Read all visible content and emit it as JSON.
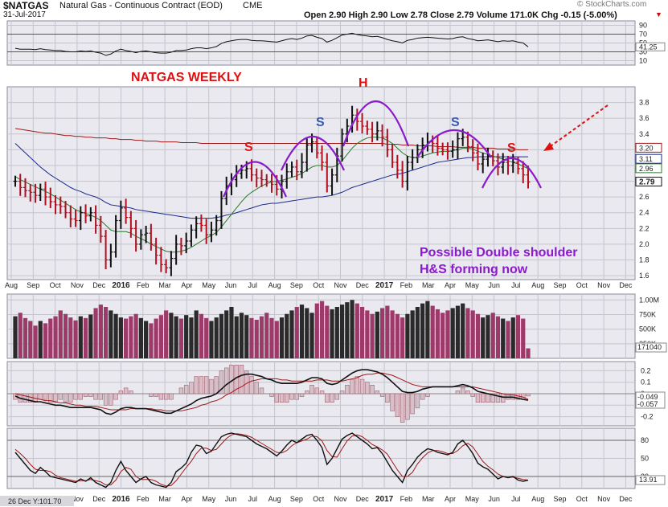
{
  "header": {
    "symbol": "$NATGAS",
    "name": "Natural Gas - Continuous Contract (EOD)",
    "exchange": "CME",
    "date": "31-Jul-2017",
    "quote": "Open 2.90  High 2.90  Low 2.78  Close 2.79  Volume 171.0K  Chg -0.15 (-5.00%)",
    "watermark": "© StockCharts.com"
  },
  "annotations": {
    "title": "NATGAS WEEKLY",
    "note_line1": "Possible Double shoulder",
    "note_line2": "H&S forming now",
    "s_left": "S",
    "s_left2": "S",
    "h": "H",
    "s_right": "S",
    "s_right2": "S"
  },
  "colors": {
    "panel_bg": "#e9e9ef",
    "price_red": "#b01020",
    "price_black": "#111111",
    "ma_red": "#a01818",
    "ma_navy": "#1a2a8c",
    "ma_green": "#2a7a2a",
    "hs_purple": "#8a1acb",
    "volume_bar": "#9e3a6a",
    "volume_dark": "#2a2a2a",
    "annotation_red": "#e01010",
    "annotation_blue": "#3a5ab0",
    "label_box_bg": "#ffffff"
  },
  "chart_data": [
    {
      "type": "ohlc",
      "name": "price",
      "x_labels": [
        "Aug",
        "Sep",
        "Oct",
        "Nov",
        "Dec",
        "2016",
        "Feb",
        "Mar",
        "Apr",
        "May",
        "Jun",
        "Jul",
        "Aug",
        "Sep",
        "Oct",
        "Nov",
        "Dec",
        "2017",
        "Feb",
        "Mar",
        "Apr",
        "May",
        "Jun",
        "Jul",
        "Aug",
        "Sep",
        "Oct",
        "Nov",
        "Dec"
      ],
      "y_ticks": [
        1.6,
        1.8,
        2.0,
        2.2,
        2.4,
        2.6,
        2.8,
        3.0,
        3.2,
        3.4,
        3.6,
        3.8
      ],
      "ylim": [
        1.55,
        4.0
      ],
      "closes": [
        2.8,
        2.72,
        2.68,
        2.66,
        2.62,
        2.7,
        2.6,
        2.54,
        2.5,
        2.48,
        2.4,
        2.32,
        2.3,
        2.4,
        2.36,
        2.4,
        2.24,
        2.1,
        1.8,
        1.9,
        2.3,
        2.46,
        2.34,
        2.2,
        2.0,
        2.12,
        2.14,
        2.0,
        1.86,
        1.74,
        1.7,
        1.82,
        2.0,
        1.98,
        2.04,
        2.18,
        2.26,
        2.24,
        2.12,
        2.18,
        2.3,
        2.58,
        2.74,
        2.82,
        2.9,
        2.94,
        2.96,
        2.88,
        2.84,
        2.82,
        2.8,
        2.76,
        2.7,
        2.8,
        2.92,
        2.98,
        2.92,
        3.04,
        3.26,
        3.3,
        3.16,
        3.04,
        2.74,
        2.88,
        3.12,
        3.4,
        3.5,
        3.64,
        3.56,
        3.5,
        3.46,
        3.4,
        3.44,
        3.36,
        3.2,
        3.04,
        2.94,
        2.8,
        3.04,
        3.1,
        3.2,
        3.26,
        3.3,
        3.28,
        3.22,
        3.2,
        3.18,
        3.2,
        3.34,
        3.36,
        3.24,
        3.16,
        3.02,
        3.08,
        3.12,
        3.06,
        2.98,
        3.04,
        3.0,
        3.04,
        2.96,
        2.88,
        2.79
      ],
      "last_close": "2.79",
      "right_labels": [
        "3.20",
        "3.11",
        "2.96",
        "2.79"
      ],
      "moving_averages": [
        {
          "name": "MA red",
          "values": [
            3.47,
            3.46,
            3.45,
            3.44,
            3.43,
            3.42,
            3.41,
            3.41,
            3.4,
            3.39,
            3.38,
            3.38,
            3.37,
            3.37,
            3.36,
            3.36,
            3.35,
            3.35,
            3.35,
            3.34,
            3.34,
            3.33,
            3.33,
            3.33,
            3.32,
            3.32,
            3.31,
            3.31,
            3.31,
            3.3,
            3.3,
            3.3,
            3.3,
            3.29,
            3.29,
            3.29,
            3.29,
            3.28,
            3.28,
            3.28,
            3.28,
            3.28,
            3.28,
            3.28,
            3.28,
            3.28,
            3.28,
            3.28,
            3.28,
            3.28,
            3.28,
            3.28,
            3.28,
            3.28,
            3.28,
            3.28,
            3.28,
            3.28,
            3.28,
            3.28,
            3.28,
            3.28,
            3.28,
            3.28,
            3.28,
            3.28,
            3.28,
            3.28,
            3.28,
            3.28,
            3.28,
            3.28,
            3.28,
            3.28,
            3.27,
            3.27,
            3.27,
            3.26,
            3.26,
            3.26,
            3.25,
            3.25,
            3.25,
            3.25,
            3.24,
            3.24,
            3.24,
            3.24,
            3.23,
            3.23,
            3.23,
            3.23,
            3.22,
            3.22,
            3.22,
            3.22,
            3.21,
            3.21,
            3.21,
            3.21,
            3.2,
            3.2,
            3.2
          ]
        },
        {
          "name": "MA navy",
          "values": [
            3.28,
            3.22,
            3.16,
            3.1,
            3.04,
            2.98,
            2.93,
            2.88,
            2.84,
            2.8,
            2.76,
            2.72,
            2.69,
            2.67,
            2.64,
            2.62,
            2.6,
            2.57,
            2.53,
            2.5,
            2.49,
            2.48,
            2.47,
            2.46,
            2.44,
            2.43,
            2.42,
            2.41,
            2.4,
            2.39,
            2.38,
            2.37,
            2.36,
            2.35,
            2.34,
            2.33,
            2.33,
            2.33,
            2.33,
            2.33,
            2.34,
            2.35,
            2.37,
            2.38,
            2.4,
            2.42,
            2.44,
            2.46,
            2.48,
            2.5,
            2.51,
            2.52,
            2.52,
            2.53,
            2.54,
            2.55,
            2.56,
            2.57,
            2.58,
            2.59,
            2.6,
            2.6,
            2.61,
            2.62,
            2.64,
            2.66,
            2.69,
            2.72,
            2.74,
            2.76,
            2.78,
            2.8,
            2.82,
            2.84,
            2.86,
            2.88,
            2.89,
            2.9,
            2.92,
            2.94,
            2.96,
            2.98,
            3.0,
            3.02,
            3.04,
            3.05,
            3.06,
            3.07,
            3.08,
            3.09,
            3.1,
            3.1,
            3.11,
            3.11,
            3.11,
            3.11,
            3.11,
            3.11,
            3.11,
            3.11,
            3.11,
            3.11,
            3.11
          ]
        },
        {
          "name": "MA green",
          "values": [
            2.86,
            2.82,
            2.79,
            2.76,
            2.73,
            2.7,
            2.67,
            2.64,
            2.6,
            2.56,
            2.52,
            2.48,
            2.44,
            2.41,
            2.39,
            2.37,
            2.34,
            2.3,
            2.24,
            2.18,
            2.16,
            2.16,
            2.16,
            2.14,
            2.1,
            2.07,
            2.04,
            2.0,
            1.97,
            1.94,
            1.91,
            1.9,
            1.9,
            1.91,
            1.93,
            1.96,
            2.0,
            2.04,
            2.08,
            2.11,
            2.15,
            2.22,
            2.3,
            2.38,
            2.46,
            2.54,
            2.61,
            2.66,
            2.7,
            2.74,
            2.77,
            2.79,
            2.8,
            2.81,
            2.83,
            2.85,
            2.87,
            2.9,
            2.94,
            2.98,
            3.0,
            3.0,
            2.98,
            2.98,
            3.0,
            3.06,
            3.14,
            3.22,
            3.28,
            3.32,
            3.35,
            3.36,
            3.36,
            3.35,
            3.32,
            3.28,
            3.22,
            3.16,
            3.12,
            3.1,
            3.1,
            3.12,
            3.14,
            3.16,
            3.17,
            3.18,
            3.18,
            3.19,
            3.2,
            3.22,
            3.22,
            3.21,
            3.18,
            3.16,
            3.14,
            3.12,
            3.1,
            3.08,
            3.06,
            3.04,
            3.02,
            2.99,
            2.96
          ]
        }
      ]
    },
    {
      "type": "line",
      "name": "RSI",
      "y_ticks": [
        10,
        30,
        50,
        70,
        90
      ],
      "ylim": [
        0,
        100
      ],
      "values": [
        38,
        36,
        36,
        36,
        35,
        37,
        35,
        34,
        33,
        33,
        31,
        30,
        30,
        32,
        31,
        32,
        29,
        27,
        22,
        25,
        32,
        36,
        33,
        31,
        28,
        31,
        32,
        30,
        28,
        27,
        27,
        29,
        33,
        33,
        34,
        37,
        39,
        39,
        37,
        39,
        42,
        49,
        53,
        55,
        57,
        58,
        58,
        56,
        55,
        55,
        54,
        53,
        52,
        55,
        58,
        60,
        58,
        61,
        66,
        67,
        63,
        60,
        52,
        56,
        62,
        68,
        70,
        72,
        69,
        67,
        66,
        64,
        65,
        62,
        58,
        55,
        53,
        50,
        56,
        58,
        61,
        62,
        63,
        62,
        61,
        60,
        59,
        60,
        63,
        64,
        60,
        58,
        55,
        56,
        57,
        55,
        53,
        55,
        54,
        55,
        52,
        50,
        41.25
      ],
      "last": "41.25"
    },
    {
      "type": "bar",
      "name": "volume",
      "y_ticks": [
        "1.00M",
        "750K",
        "500K",
        "250K"
      ],
      "ylim": [
        0,
        1100
      ],
      "values": [
        720,
        780,
        690,
        640,
        560,
        640,
        600,
        680,
        720,
        820,
        760,
        700,
        650,
        720,
        690,
        750,
        860,
        920,
        880,
        820,
        760,
        700,
        680,
        720,
        760,
        690,
        640,
        600,
        680,
        740,
        820,
        780,
        720,
        680,
        740,
        700,
        820,
        760,
        690,
        640,
        700,
        760,
        820,
        880,
        720,
        780,
        740,
        690,
        660,
        720,
        780,
        690,
        640,
        700,
        760,
        820,
        880,
        920,
        860,
        780,
        940,
        980,
        900,
        840,
        880,
        920,
        960,
        1000,
        940,
        880,
        820,
        760,
        800,
        860,
        900,
        820,
        760,
        700,
        760,
        820,
        880,
        940,
        980,
        900,
        840,
        780,
        820,
        860,
        900,
        940,
        860,
        820,
        760,
        700,
        740,
        780,
        720,
        680,
        640,
        700,
        740,
        680,
        171
      ],
      "last": "171040"
    },
    {
      "type": "line",
      "name": "MACD",
      "y_ticks": [
        0.2,
        0.1,
        0.0,
        -0.1,
        -0.2
      ],
      "ylim": [
        -0.28,
        0.28
      ],
      "macd": [
        -0.02,
        -0.04,
        -0.05,
        -0.06,
        -0.07,
        -0.07,
        -0.08,
        -0.09,
        -0.1,
        -0.1,
        -0.11,
        -0.12,
        -0.12,
        -0.12,
        -0.12,
        -0.12,
        -0.13,
        -0.14,
        -0.17,
        -0.18,
        -0.16,
        -0.13,
        -0.12,
        -0.12,
        -0.13,
        -0.13,
        -0.13,
        -0.14,
        -0.15,
        -0.16,
        -0.17,
        -0.17,
        -0.15,
        -0.13,
        -0.11,
        -0.09,
        -0.06,
        -0.04,
        -0.03,
        -0.02,
        0.0,
        0.04,
        0.08,
        0.11,
        0.14,
        0.16,
        0.17,
        0.17,
        0.16,
        0.15,
        0.13,
        0.12,
        0.1,
        0.09,
        0.09,
        0.09,
        0.09,
        0.1,
        0.12,
        0.14,
        0.14,
        0.13,
        0.09,
        0.08,
        0.09,
        0.12,
        0.15,
        0.18,
        0.2,
        0.21,
        0.21,
        0.2,
        0.19,
        0.17,
        0.14,
        0.1,
        0.06,
        0.02,
        0.01,
        0.01,
        0.02,
        0.04,
        0.05,
        0.06,
        0.06,
        0.06,
        0.06,
        0.06,
        0.07,
        0.08,
        0.07,
        0.05,
        0.02,
        0.01,
        0.0,
        -0.01,
        -0.02,
        -0.03,
        -0.03,
        -0.03,
        -0.04,
        -0.05,
        -0.057
      ],
      "signal": [
        0.0,
        -0.01,
        -0.02,
        -0.03,
        -0.04,
        -0.05,
        -0.06,
        -0.06,
        -0.07,
        -0.08,
        -0.08,
        -0.09,
        -0.1,
        -0.1,
        -0.11,
        -0.11,
        -0.11,
        -0.12,
        -0.13,
        -0.14,
        -0.14,
        -0.14,
        -0.14,
        -0.13,
        -0.13,
        -0.13,
        -0.13,
        -0.13,
        -0.14,
        -0.14,
        -0.15,
        -0.15,
        -0.15,
        -0.15,
        -0.14,
        -0.13,
        -0.12,
        -0.1,
        -0.09,
        -0.07,
        -0.06,
        -0.04,
        -0.01,
        0.01,
        0.04,
        0.06,
        0.09,
        0.11,
        0.12,
        0.13,
        0.13,
        0.13,
        0.13,
        0.12,
        0.12,
        0.11,
        0.11,
        0.11,
        0.11,
        0.11,
        0.12,
        0.12,
        0.12,
        0.11,
        0.11,
        0.11,
        0.12,
        0.13,
        0.14,
        0.16,
        0.17,
        0.17,
        0.18,
        0.18,
        0.17,
        0.16,
        0.14,
        0.12,
        0.1,
        0.08,
        0.07,
        0.06,
        0.06,
        0.06,
        0.06,
        0.06,
        0.06,
        0.06,
        0.06,
        0.06,
        0.06,
        0.06,
        0.05,
        0.04,
        0.03,
        0.02,
        0.01,
        0.0,
        -0.01,
        -0.01,
        -0.02,
        -0.03,
        -0.049
      ],
      "labels": [
        "-0.049",
        "-0.057"
      ]
    },
    {
      "type": "line",
      "name": "stochastics",
      "y_ticks": [
        20,
        50,
        80
      ],
      "ylim": [
        0,
        100
      ],
      "k": [
        60,
        50,
        40,
        30,
        25,
        35,
        28,
        20,
        18,
        16,
        14,
        12,
        10,
        16,
        12,
        18,
        10,
        6,
        2,
        10,
        30,
        45,
        30,
        20,
        10,
        16,
        20,
        10,
        6,
        4,
        2,
        10,
        28,
        34,
        42,
        60,
        72,
        70,
        58,
        62,
        74,
        86,
        90,
        92,
        90,
        88,
        86,
        80,
        74,
        70,
        66,
        60,
        54,
        62,
        72,
        80,
        76,
        82,
        88,
        90,
        80,
        68,
        40,
        50,
        66,
        82,
        88,
        92,
        86,
        80,
        74,
        66,
        68,
        58,
        44,
        30,
        20,
        10,
        30,
        40,
        52,
        60,
        66,
        64,
        60,
        58,
        56,
        60,
        74,
        80,
        70,
        58,
        42,
        36,
        32,
        24,
        16,
        20,
        18,
        20,
        14,
        12,
        13.91
      ],
      "d": [
        65,
        58,
        50,
        40,
        32,
        30,
        30,
        28,
        22,
        18,
        16,
        14,
        12,
        13,
        13,
        15,
        13,
        11,
        6,
        6,
        14,
        28,
        35,
        32,
        20,
        15,
        15,
        15,
        12,
        7,
        4,
        5,
        13,
        24,
        35,
        45,
        58,
        67,
        67,
        63,
        65,
        74,
        83,
        89,
        91,
        90,
        88,
        85,
        80,
        75,
        70,
        65,
        60,
        59,
        63,
        71,
        76,
        79,
        82,
        87,
        86,
        79,
        63,
        53,
        52,
        66,
        79,
        87,
        89,
        86,
        80,
        73,
        69,
        64,
        57,
        44,
        31,
        20,
        20,
        27,
        41,
        51,
        59,
        63,
        63,
        61,
        58,
        58,
        63,
        71,
        75,
        69,
        57,
        45,
        37,
        31,
        24,
        20,
        18,
        19,
        17,
        15,
        14
      ],
      "last": "13.91",
      "footer_note": "26 Dec Y:101.70"
    }
  ]
}
